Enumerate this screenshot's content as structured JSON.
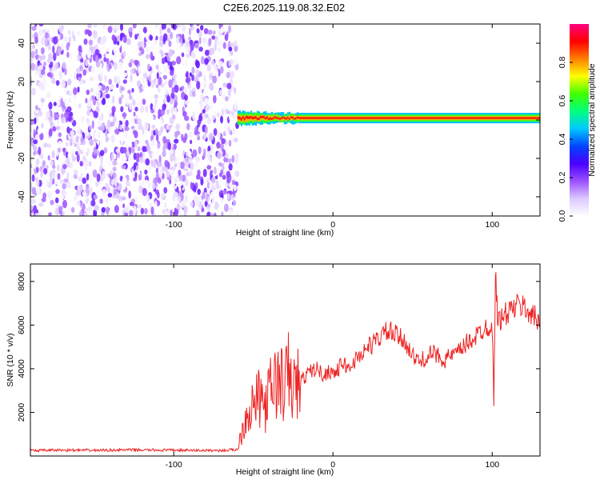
{
  "title": "C2E6.2025.119.08.32.E02",
  "colors": {
    "snr_line": "#ee2222",
    "colorbar": [
      "#ffffff",
      "#dcc8ff",
      "#9b50ff",
      "#4a00ff",
      "#0044ff",
      "#00c8ff",
      "#00ff80",
      "#40ff00",
      "#ffff00",
      "#ff8000",
      "#ff0000",
      "#ff0080"
    ]
  },
  "chart_data": [
    {
      "type": "heatmap",
      "xlabel": "Height of straight line (km)",
      "ylabel": "Frequency (Hz)",
      "xlim": [
        -190,
        130
      ],
      "ylim": [
        -50,
        50
      ],
      "xticks": [
        -100,
        0,
        100
      ],
      "yticks": [
        -40,
        -20,
        0,
        20,
        40
      ],
      "colorbar": {
        "label": "Normalized spectral amplitude",
        "range": [
          0,
          1
        ],
        "ticks": [
          0.0,
          0.2,
          0.4,
          0.6,
          0.8
        ]
      },
      "regions": [
        {
          "x_range": [
            -190,
            -60
          ],
          "f_range": [
            -50,
            50
          ],
          "description": "noise",
          "amplitude_range": [
            0.0,
            0.25
          ]
        },
        {
          "x_range": [
            -60,
            130
          ],
          "f_center": 1,
          "description": "signal band",
          "amplitude_peak": 0.9
        }
      ]
    },
    {
      "type": "line",
      "xlabel": "Height of straight line (km)",
      "ylabel": "SNR (10 * v/v)",
      "xlim": [
        -190,
        130
      ],
      "ylim": [
        0,
        8800
      ],
      "xticks": [
        -100,
        0,
        100
      ],
      "yticks": [
        2000,
        4000,
        6000,
        8000
      ],
      "series": [
        {
          "x": [
            -190,
            -170,
            -150,
            -130,
            -110,
            -90,
            -70,
            -60,
            -55,
            -50,
            -46,
            -42,
            -38,
            -34,
            -30,
            -28,
            -26,
            -22,
            -18,
            -14,
            -10,
            -6,
            -2,
            2,
            6,
            10,
            14,
            18,
            22,
            26,
            30,
            34,
            38,
            42,
            46,
            50,
            54,
            58,
            62,
            66,
            70,
            74,
            78,
            82,
            86,
            90,
            94,
            98,
            100,
            101,
            102,
            103,
            104,
            106,
            110,
            114,
            118,
            122,
            126,
            130
          ],
          "y": [
            250,
            270,
            260,
            280,
            270,
            260,
            250,
            300,
            1800,
            2400,
            2600,
            2300,
            3300,
            3400,
            3200,
            3800,
            3100,
            3300,
            3600,
            3900,
            4000,
            3700,
            3900,
            3800,
            4300,
            4000,
            4400,
            4700,
            5000,
            5200,
            5500,
            5700,
            5600,
            5400,
            5200,
            4600,
            4300,
            4500,
            4700,
            4600,
            4400,
            4600,
            4700,
            5000,
            5300,
            5500,
            5800,
            6000,
            5900,
            2500,
            8500,
            6800,
            6200,
            6300,
            6600,
            6800,
            6900,
            6700,
            6400,
            6100
          ]
        }
      ]
    }
  ]
}
